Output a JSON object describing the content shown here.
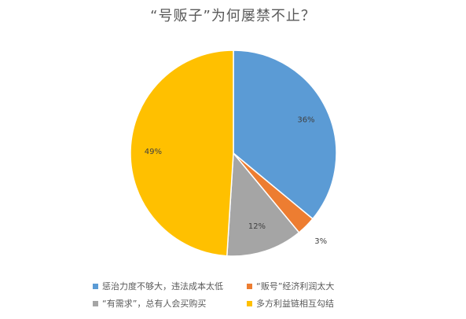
{
  "chart_data": {
    "type": "pie",
    "title": "“号贩子”为何屡禁不止？",
    "categories": [
      "惩治力度不够大，违法成本太低",
      "“贩号”经济利润太大",
      "“有需求”，总有人会买购买",
      "多方利益链相互勾结"
    ],
    "values": [
      36,
      3,
      12,
      49
    ],
    "data_labels": [
      "36%",
      "3%",
      "12%",
      "49%"
    ],
    "colors": [
      "#5B9BD5",
      "#ED7D31",
      "#A5A5A5",
      "#FFC000"
    ],
    "legend_position": "bottom",
    "start_angle_deg": 0,
    "direction": "clockwise"
  }
}
